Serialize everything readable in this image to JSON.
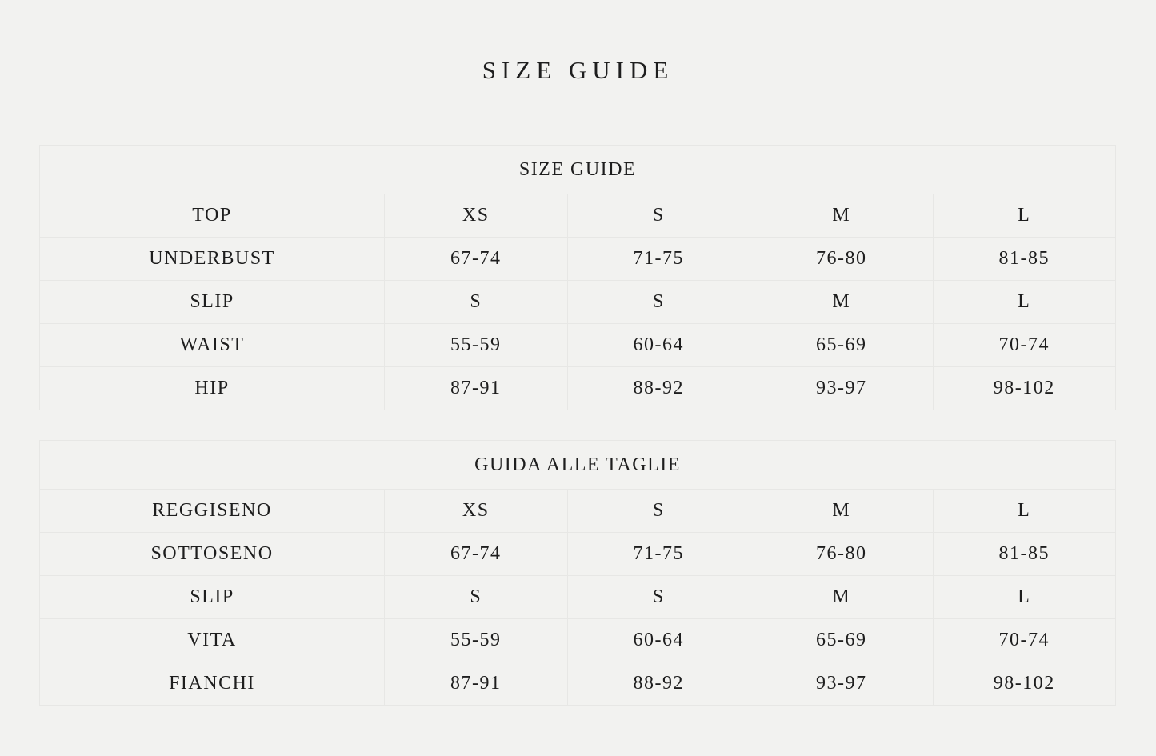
{
  "page_title": "SIZE GUIDE",
  "tables": [
    {
      "title": "SIZE GUIDE",
      "rows": [
        [
          "TOP",
          "XS",
          "S",
          "M",
          "L"
        ],
        [
          "UNDERBUST",
          "67-74",
          "71-75",
          "76-80",
          "81-85"
        ],
        [
          "SLIP",
          "S",
          "S",
          "M",
          "L"
        ],
        [
          "WAIST",
          "55-59",
          "60-64",
          "65-69",
          "70-74"
        ],
        [
          "HIP",
          "87-91",
          "88-92",
          "93-97",
          "98-102"
        ]
      ]
    },
    {
      "title": "GUIDA ALLE TAGLIE",
      "rows": [
        [
          "REGGISENO",
          "XS",
          "S",
          "M",
          "L"
        ],
        [
          "SOTTOSENO",
          "67-74",
          "71-75",
          "76-80",
          "81-85"
        ],
        [
          "SLIP",
          "S",
          "S",
          "M",
          "L"
        ],
        [
          "VITA",
          "55-59",
          "60-64",
          "65-69",
          "70-74"
        ],
        [
          "FIANCHI",
          "87-91",
          "88-92",
          "93-97",
          "98-102"
        ]
      ]
    }
  ]
}
